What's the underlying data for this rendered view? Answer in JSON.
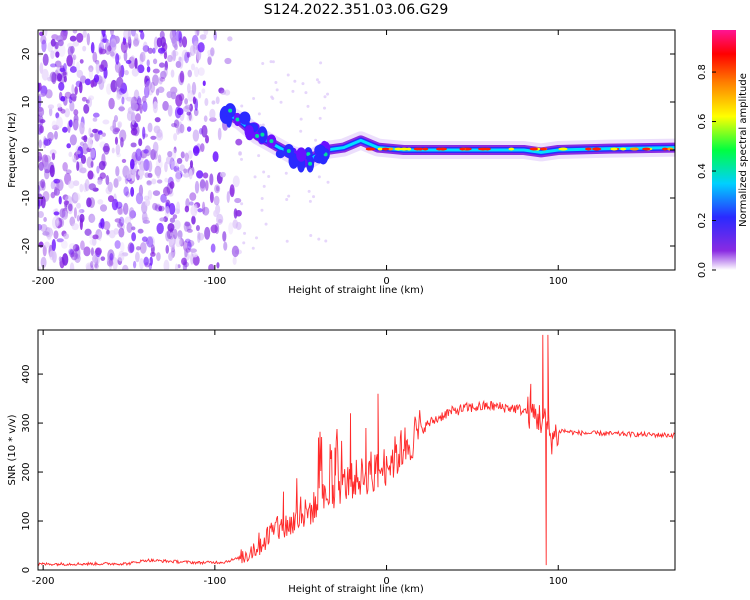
{
  "title": "S124.2022.351.03.06.G29",
  "chart_data": [
    {
      "type": "heatmap",
      "xlabel": "Height of straight line (km)",
      "ylabel": "Frequency (Hz)",
      "xlim": [
        -203,
        168
      ],
      "ylim": [
        -25,
        25
      ],
      "xticks": [
        -200,
        -100,
        0,
        100
      ],
      "yticks": [
        -20,
        -10,
        0,
        10,
        20
      ],
      "grid": false,
      "colorbar": {
        "label": "Normalized spectral amplitude",
        "range": [
          0,
          0.97
        ],
        "ticks": [
          0.0,
          0.2,
          0.4,
          0.6,
          0.8
        ],
        "colormap": [
          "#ffffff",
          "#8a2be2",
          "#2a2aff",
          "#00d0ff",
          "#00ff40",
          "#ffff00",
          "#ff8000",
          "#ff0000",
          "#ff1493"
        ]
      },
      "colors": {
        "noise": "#9a55e8",
        "line": "#00e0ff",
        "peak": "#ff2000"
      },
      "features": {
        "noise_region_x": [
          -203,
          -85
        ],
        "signal_path": [
          [
            -95,
            8
          ],
          [
            -85,
            6
          ],
          [
            -75,
            3
          ],
          [
            -65,
            1
          ],
          [
            -55,
            -1
          ],
          [
            -45,
            -2
          ],
          [
            -35,
            0
          ],
          [
            -25,
            0.5
          ],
          [
            -15,
            2
          ],
          [
            -5,
            0.5
          ],
          [
            10,
            0
          ],
          [
            40,
            0
          ],
          [
            80,
            0
          ],
          [
            90,
            -0.5
          ],
          [
            100,
            0
          ],
          [
            130,
            0.3
          ],
          [
            168,
            0.5
          ]
        ]
      }
    },
    {
      "type": "line",
      "xlabel": "Height of straight line (km)",
      "ylabel": "SNR (10 * v/v)",
      "xlim": [
        -203,
        168
      ],
      "ylim": [
        0,
        490
      ],
      "xticks": [
        -200,
        -100,
        0,
        100
      ],
      "yticks": [
        0,
        100,
        200,
        300,
        400
      ],
      "grid": false,
      "series": [
        {
          "color": "#ff2a2a",
          "trend": [
            [
              -203,
              12
            ],
            [
              -150,
              13
            ],
            [
              -140,
              20
            ],
            [
              -110,
              15
            ],
            [
              -95,
              16
            ],
            [
              -85,
              25
            ],
            [
              -75,
              50
            ],
            [
              -65,
              80
            ],
            [
              -55,
              95
            ],
            [
              -45,
              120
            ],
            [
              -35,
              150
            ],
            [
              -25,
              175
            ],
            [
              -15,
              190
            ],
            [
              -5,
              200
            ],
            [
              5,
              230
            ],
            [
              15,
              270
            ],
            [
              25,
              300
            ],
            [
              35,
              320
            ],
            [
              45,
              330
            ],
            [
              60,
              335
            ],
            [
              75,
              330
            ],
            [
              85,
              320
            ],
            [
              93,
              300
            ],
            [
              96,
              270
            ],
            [
              102,
              285
            ],
            [
              110,
              280
            ],
            [
              168,
              275
            ]
          ],
          "spikes": [
            [
              -60,
              160
            ],
            [
              -30,
              250
            ],
            [
              -21,
              320
            ],
            [
              -12,
              290
            ],
            [
              -5,
              360
            ],
            [
              91,
              480
            ],
            [
              94,
              480
            ],
            [
              93,
              10
            ],
            [
              84,
              380
            ]
          ]
        }
      ]
    }
  ]
}
